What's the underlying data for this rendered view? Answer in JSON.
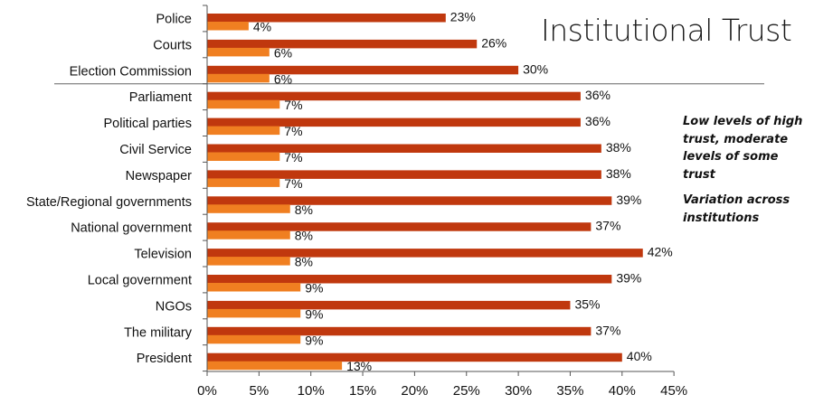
{
  "title": "Institutional Trust",
  "notes": [
    "Low levels of high trust, moderate levels of some trust",
    "Variation across institutions"
  ],
  "colors": {
    "series1": "#c0380e",
    "series2": "#f07f21"
  },
  "chart_data": {
    "type": "bar",
    "orientation": "horizontal",
    "categories": [
      "Police",
      "Courts",
      "Election Commission",
      "Parliament",
      "Political parties",
      "Civil Service",
      "Newspaper",
      "State/Regional governments",
      "National government",
      "Television",
      "Local government",
      "NGOs",
      "The military",
      "President"
    ],
    "series": [
      {
        "values": [
          23,
          26,
          30,
          36,
          36,
          38,
          38,
          39,
          37,
          42,
          39,
          35,
          37,
          40
        ]
      },
      {
        "values": [
          4,
          6,
          6,
          7,
          7,
          7,
          7,
          8,
          8,
          8,
          9,
          9,
          9,
          13
        ]
      }
    ],
    "x_ticks": [
      "0%",
      "5%",
      "10%",
      "15%",
      "20%",
      "25%",
      "30%",
      "35%",
      "40%",
      "45%"
    ],
    "xlim": [
      0,
      45
    ],
    "grid": false
  }
}
